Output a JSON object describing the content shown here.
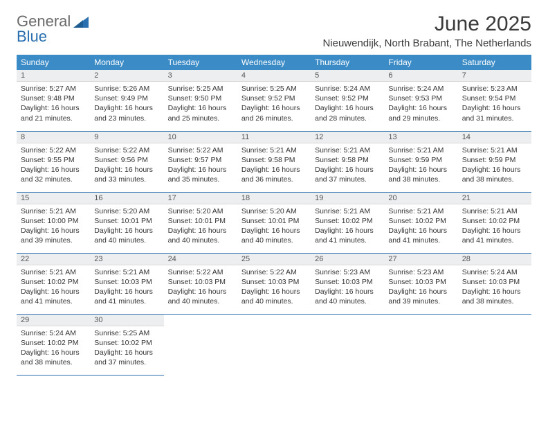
{
  "logo": {
    "text1": "General",
    "text2": "Blue"
  },
  "title": "June 2025",
  "location": "Nieuwendijk, North Brabant, The Netherlands",
  "colors": {
    "header_bg": "#3b8bc7",
    "header_text": "#ffffff",
    "daynum_bg": "#eceeef",
    "border": "#2a6fb0",
    "logo_gray": "#6a6a6a",
    "logo_blue": "#2a6fb0"
  },
  "weekdays": [
    "Sunday",
    "Monday",
    "Tuesday",
    "Wednesday",
    "Thursday",
    "Friday",
    "Saturday"
  ],
  "weeks": [
    [
      {
        "n": 1,
        "sr": "5:27 AM",
        "ss": "9:48 PM",
        "dl": "16 hours and 21 minutes."
      },
      {
        "n": 2,
        "sr": "5:26 AM",
        "ss": "9:49 PM",
        "dl": "16 hours and 23 minutes."
      },
      {
        "n": 3,
        "sr": "5:25 AM",
        "ss": "9:50 PM",
        "dl": "16 hours and 25 minutes."
      },
      {
        "n": 4,
        "sr": "5:25 AM",
        "ss": "9:52 PM",
        "dl": "16 hours and 26 minutes."
      },
      {
        "n": 5,
        "sr": "5:24 AM",
        "ss": "9:52 PM",
        "dl": "16 hours and 28 minutes."
      },
      {
        "n": 6,
        "sr": "5:24 AM",
        "ss": "9:53 PM",
        "dl": "16 hours and 29 minutes."
      },
      {
        "n": 7,
        "sr": "5:23 AM",
        "ss": "9:54 PM",
        "dl": "16 hours and 31 minutes."
      }
    ],
    [
      {
        "n": 8,
        "sr": "5:22 AM",
        "ss": "9:55 PM",
        "dl": "16 hours and 32 minutes."
      },
      {
        "n": 9,
        "sr": "5:22 AM",
        "ss": "9:56 PM",
        "dl": "16 hours and 33 minutes."
      },
      {
        "n": 10,
        "sr": "5:22 AM",
        "ss": "9:57 PM",
        "dl": "16 hours and 35 minutes."
      },
      {
        "n": 11,
        "sr": "5:21 AM",
        "ss": "9:58 PM",
        "dl": "16 hours and 36 minutes."
      },
      {
        "n": 12,
        "sr": "5:21 AM",
        "ss": "9:58 PM",
        "dl": "16 hours and 37 minutes."
      },
      {
        "n": 13,
        "sr": "5:21 AM",
        "ss": "9:59 PM",
        "dl": "16 hours and 38 minutes."
      },
      {
        "n": 14,
        "sr": "5:21 AM",
        "ss": "9:59 PM",
        "dl": "16 hours and 38 minutes."
      }
    ],
    [
      {
        "n": 15,
        "sr": "5:21 AM",
        "ss": "10:00 PM",
        "dl": "16 hours and 39 minutes."
      },
      {
        "n": 16,
        "sr": "5:20 AM",
        "ss": "10:01 PM",
        "dl": "16 hours and 40 minutes."
      },
      {
        "n": 17,
        "sr": "5:20 AM",
        "ss": "10:01 PM",
        "dl": "16 hours and 40 minutes."
      },
      {
        "n": 18,
        "sr": "5:20 AM",
        "ss": "10:01 PM",
        "dl": "16 hours and 40 minutes."
      },
      {
        "n": 19,
        "sr": "5:21 AM",
        "ss": "10:02 PM",
        "dl": "16 hours and 41 minutes."
      },
      {
        "n": 20,
        "sr": "5:21 AM",
        "ss": "10:02 PM",
        "dl": "16 hours and 41 minutes."
      },
      {
        "n": 21,
        "sr": "5:21 AM",
        "ss": "10:02 PM",
        "dl": "16 hours and 41 minutes."
      }
    ],
    [
      {
        "n": 22,
        "sr": "5:21 AM",
        "ss": "10:02 PM",
        "dl": "16 hours and 41 minutes."
      },
      {
        "n": 23,
        "sr": "5:21 AM",
        "ss": "10:03 PM",
        "dl": "16 hours and 41 minutes."
      },
      {
        "n": 24,
        "sr": "5:22 AM",
        "ss": "10:03 PM",
        "dl": "16 hours and 40 minutes."
      },
      {
        "n": 25,
        "sr": "5:22 AM",
        "ss": "10:03 PM",
        "dl": "16 hours and 40 minutes."
      },
      {
        "n": 26,
        "sr": "5:23 AM",
        "ss": "10:03 PM",
        "dl": "16 hours and 40 minutes."
      },
      {
        "n": 27,
        "sr": "5:23 AM",
        "ss": "10:03 PM",
        "dl": "16 hours and 39 minutes."
      },
      {
        "n": 28,
        "sr": "5:24 AM",
        "ss": "10:03 PM",
        "dl": "16 hours and 38 minutes."
      }
    ],
    [
      {
        "n": 29,
        "sr": "5:24 AM",
        "ss": "10:02 PM",
        "dl": "16 hours and 38 minutes."
      },
      {
        "n": 30,
        "sr": "5:25 AM",
        "ss": "10:02 PM",
        "dl": "16 hours and 37 minutes."
      },
      null,
      null,
      null,
      null,
      null
    ]
  ],
  "labels": {
    "sunrise": "Sunrise: ",
    "sunset": "Sunset: ",
    "daylight": "Daylight: "
  }
}
